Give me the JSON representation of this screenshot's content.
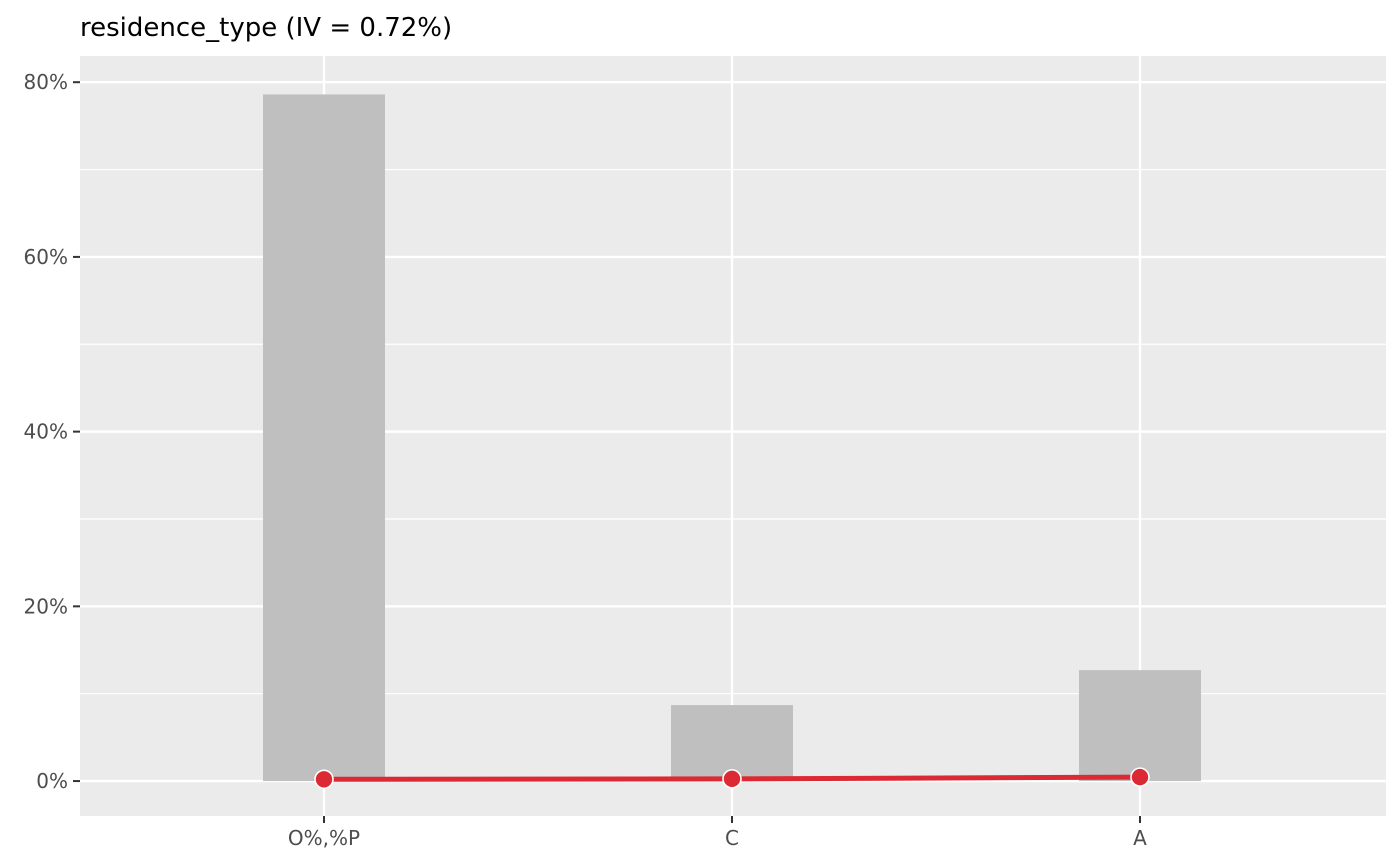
{
  "chart_data": {
    "type": "bar",
    "title": "residence_type (IV = 0.72%)",
    "xlabel": "",
    "ylabel": "",
    "categories": [
      "O%,%P",
      "C",
      "A"
    ],
    "series": [
      {
        "type": "bar",
        "values": [
          78.6,
          8.7,
          12.7
        ]
      },
      {
        "type": "line",
        "values": [
          0.2,
          0.25,
          0.45
        ]
      }
    ],
    "ylim": [
      -4.0,
      83.0
    ],
    "y_ticks": [
      0,
      20,
      40,
      60,
      80
    ],
    "y_tick_labels": [
      "0%",
      "20%",
      "40%",
      "60%",
      "80%"
    ],
    "grid": true,
    "legend": "none",
    "colors": {
      "panel": "#ebebeb",
      "grid": "#ffffff",
      "bar": "#bfbfbf",
      "line": "#dc2a35",
      "point_stroke": "#ffffff",
      "tick_text": "#4d4d4d",
      "title_text": "#000000"
    }
  }
}
